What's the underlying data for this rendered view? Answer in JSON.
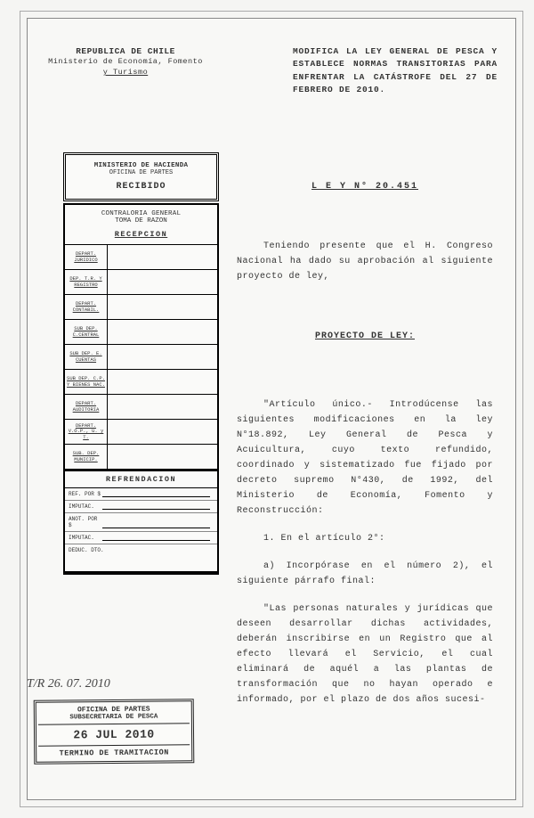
{
  "header": {
    "republic": "REPUBLICA DE CHILE",
    "ministry": "Ministerio de Economía, Fomento",
    "ministry2": "y Turismo",
    "decree_title": "MODIFICA LA LEY GENERAL DE PESCA Y ESTABLECE NORMAS TRANSITORIAS PARA ENFRENTAR LA CATÁSTROFE DEL 27 DE FEBRERO DE 2010."
  },
  "stamp_hacienda": {
    "line1": "MINISTERIO DE HACIENDA",
    "line2": "OFICINA DE PARTES",
    "line3": "RECIBIDO"
  },
  "routing": {
    "title1": "CONTRALORIA GENERAL",
    "title2": "TOMA DE RAZON",
    "title3": "RECEPCION",
    "rows": [
      "DEPART. JURIDICO",
      "DEP. T.R. Y REGISTRO",
      "DEPART. CONTABIL.",
      "SUB DEP. C.CENTRAL",
      "SUB DEP. E. CUENTAS",
      "SUB DEP. C.P. Y BIENES NAC.",
      "DEPART. AUDITORIA",
      "DEPART. V.O.P., U. y T.",
      "SUB. DEP. MUNICIP."
    ],
    "refrend_title": "REFRENDACION",
    "refrend_rows": [
      "REF. POR $",
      "IMPUTAC.",
      "ANOT. POR $",
      "IMPUTAC."
    ],
    "refrend_last": "DEDUC. DTO."
  },
  "law": {
    "title": "L E Y   N°   20.451",
    "preamble": "Teniendo presente que el H. Congreso Nacional ha dado su aprobación al siguiente proyecto de ley,",
    "proyecto": "PROYECTO DE LEY:",
    "article": "\"Artículo único.- Introdúcense las siguientes modificaciones en la ley N°18.892, Ley General de Pesca y Acuicultura, cuyo texto refundido, coordinado y sistematizado fue fijado por decreto supremo N°430, de 1992, del Ministerio de Economía, Fomento y Reconstrucción:",
    "item1": "1. En el artículo 2°:",
    "item1a": "a) Incorpórase en el número 2), el siguiente párrafo final:",
    "quote": "\"Las personas naturales y jurídicas que deseen desarrollar dichas actividades, deberán inscribirse en un Registro que al efecto llevará el Servicio, el cual eliminará de aquél a las plantas de transformación que no hayan operado e informado, por el plazo de dos años sucesi-"
  },
  "handnote": "T/R 26. 07. 2010",
  "recv_stamp": {
    "l1": "OFICINA DE PARTES",
    "l2": "SUBSECRETARIA DE PESCA",
    "l3": "26 JUL 2010",
    "l4": "TERMINO DE TRAMITACION"
  }
}
